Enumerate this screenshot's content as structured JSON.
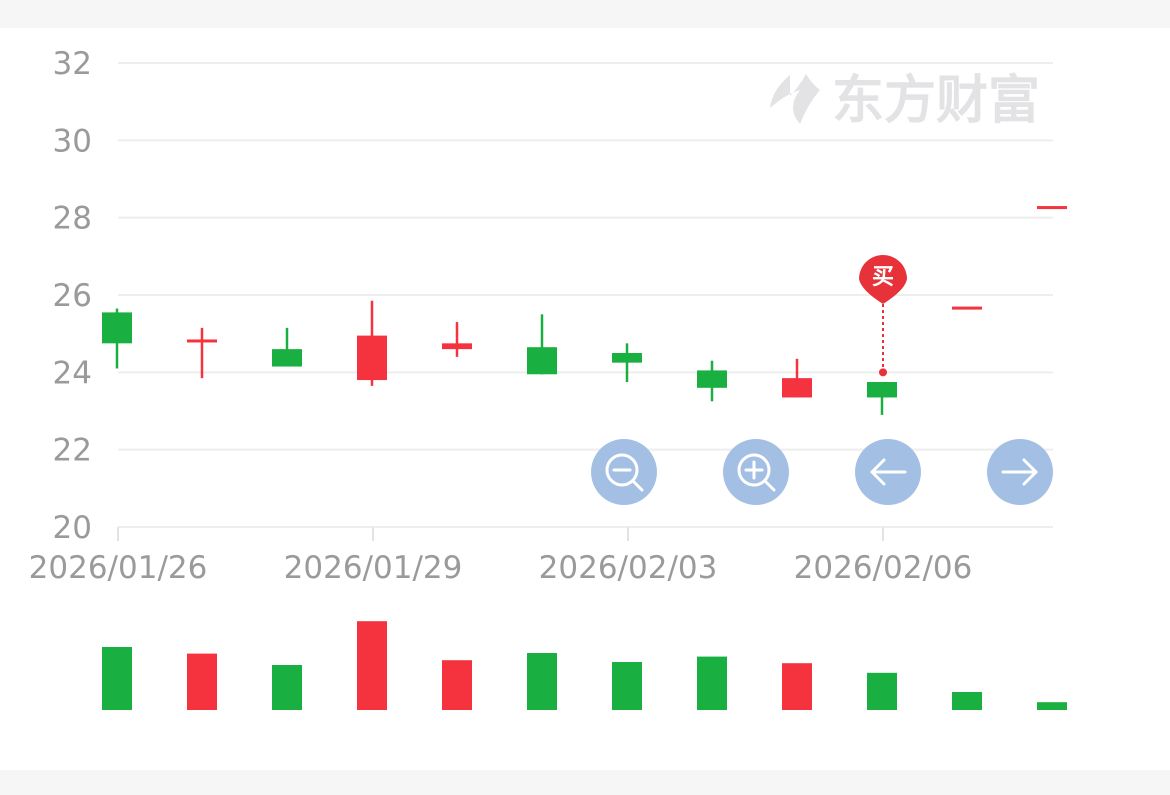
{
  "chart_data": [
    {
      "type": "candlestick",
      "title": "",
      "xlabel": "",
      "ylabel": "",
      "ylim": [
        20,
        32
      ],
      "yticks": [
        20,
        22,
        24,
        26,
        28,
        30,
        32
      ],
      "xtick_labels": [
        "2026/01/26",
        "2026/01/29",
        "2026/02/03",
        "2026/02/06"
      ],
      "xtick_indices": [
        0,
        3,
        6,
        9
      ],
      "grid": true,
      "up_color": "#f5333f",
      "down_color": "#1aaf41",
      "candles": [
        {
          "open": 25.55,
          "close": 24.75,
          "high": 25.65,
          "low": 24.1
        },
        {
          "open": 24.78,
          "close": 24.85,
          "high": 25.15,
          "low": 23.85
        },
        {
          "open": 24.6,
          "close": 24.15,
          "high": 25.15,
          "low": 24.15
        },
        {
          "open": 23.8,
          "close": 24.95,
          "high": 25.85,
          "low": 23.65
        },
        {
          "open": 24.6,
          "close": 24.75,
          "high": 25.3,
          "low": 24.4
        },
        {
          "open": 24.65,
          "close": 23.95,
          "high": 25.5,
          "low": 23.95
        },
        {
          "open": 24.5,
          "close": 24.25,
          "high": 24.75,
          "low": 23.75
        },
        {
          "open": 24.05,
          "close": 23.6,
          "high": 24.3,
          "low": 23.25
        },
        {
          "open": 23.35,
          "close": 23.85,
          "high": 24.35,
          "low": 23.35
        },
        {
          "open": 23.75,
          "close": 23.35,
          "high": 23.75,
          "low": 22.9
        },
        {
          "open": 25.7,
          "close": 25.7,
          "high": 25.7,
          "low": 25.7
        },
        {
          "open": 28.3,
          "close": 28.3,
          "high": 28.3,
          "low": 28.3
        }
      ],
      "annotations": [
        {
          "candle_index": 9,
          "price": 24.0,
          "label": "买"
        }
      ]
    },
    {
      "type": "bar",
      "title": "",
      "volumes": [
        10.5,
        9.4,
        7.5,
        14.8,
        8.3,
        9.5,
        8.0,
        8.9,
        7.8,
        6.2,
        3.0,
        1.3
      ],
      "directions": [
        "down",
        "up",
        "down",
        "up",
        "up",
        "down",
        "down",
        "down",
        "up",
        "down",
        "down",
        "down"
      ]
    }
  ],
  "watermark": {
    "text": "东方财富"
  },
  "controls": {
    "zoom_out_icon": "zoom-out-icon",
    "zoom_in_icon": "zoom-in-icon",
    "prev_icon": "arrow-left-icon",
    "next_icon": "arrow-right-icon"
  }
}
